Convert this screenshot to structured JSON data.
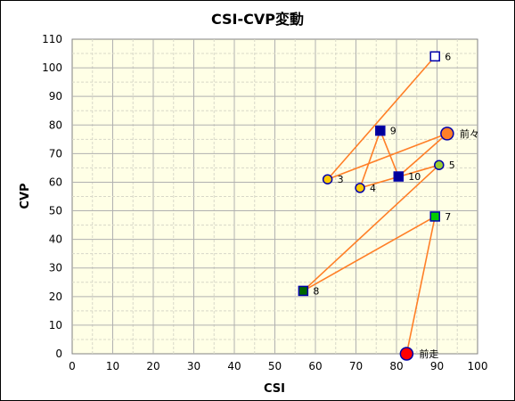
{
  "chart_data": {
    "type": "scatter",
    "title": "CSI-CVP変動",
    "xlabel": "CSI",
    "ylabel": "CVP",
    "xlim": [
      0,
      100
    ],
    "ylim": [
      0,
      110
    ],
    "x_ticks": [
      "0",
      "10",
      "20",
      "30",
      "40",
      "50",
      "60",
      "70",
      "80",
      "90",
      "100"
    ],
    "y_ticks": [
      "0",
      "10",
      "20",
      "30",
      "40",
      "50",
      "60",
      "70",
      "80",
      "90",
      "100",
      "110"
    ],
    "grid": true,
    "line_color": "#ff7f27",
    "plot_background": "#ffffe6",
    "points": [
      {
        "label": "前走",
        "x": 82.5,
        "y": 0,
        "marker": "circle-large",
        "fill": "#ff0000",
        "stroke": "#0000aa"
      },
      {
        "label": "7",
        "x": 89.5,
        "y": 48,
        "marker": "square",
        "fill": "#00cc00",
        "stroke": "#0000aa"
      },
      {
        "label": "8",
        "x": 57,
        "y": 22,
        "marker": "square",
        "fill": "#006600",
        "stroke": "#0000aa"
      },
      {
        "label": "5",
        "x": 90.5,
        "y": 66,
        "marker": "circle",
        "fill": "#99cc33",
        "stroke": "#0000aa"
      },
      {
        "label": "4",
        "x": 71,
        "y": 58,
        "marker": "circle",
        "fill": "#ffcc00",
        "stroke": "#0000aa"
      },
      {
        "label": "9",
        "x": 76,
        "y": 78,
        "marker": "square",
        "fill": "#000099",
        "stroke": "#0000aa"
      },
      {
        "label": "10",
        "x": 80.5,
        "y": 62,
        "marker": "square",
        "fill": "#000099",
        "stroke": "#0000aa"
      },
      {
        "label": "3",
        "x": 63,
        "y": 61,
        "marker": "circle",
        "fill": "#ffcc00",
        "stroke": "#0000aa"
      },
      {
        "label": "前々",
        "x": 92.5,
        "y": 77,
        "marker": "circle-large",
        "fill": "#ff7f27",
        "stroke": "#0000aa"
      },
      {
        "label": "6",
        "x": 89.5,
        "y": 104,
        "marker": "square",
        "fill": "#ffffff",
        "stroke": "#0000aa"
      }
    ],
    "path_order": [
      "前走",
      "7",
      "8",
      "5",
      "4",
      "9",
      "10",
      "前々",
      "3",
      "6"
    ]
  }
}
